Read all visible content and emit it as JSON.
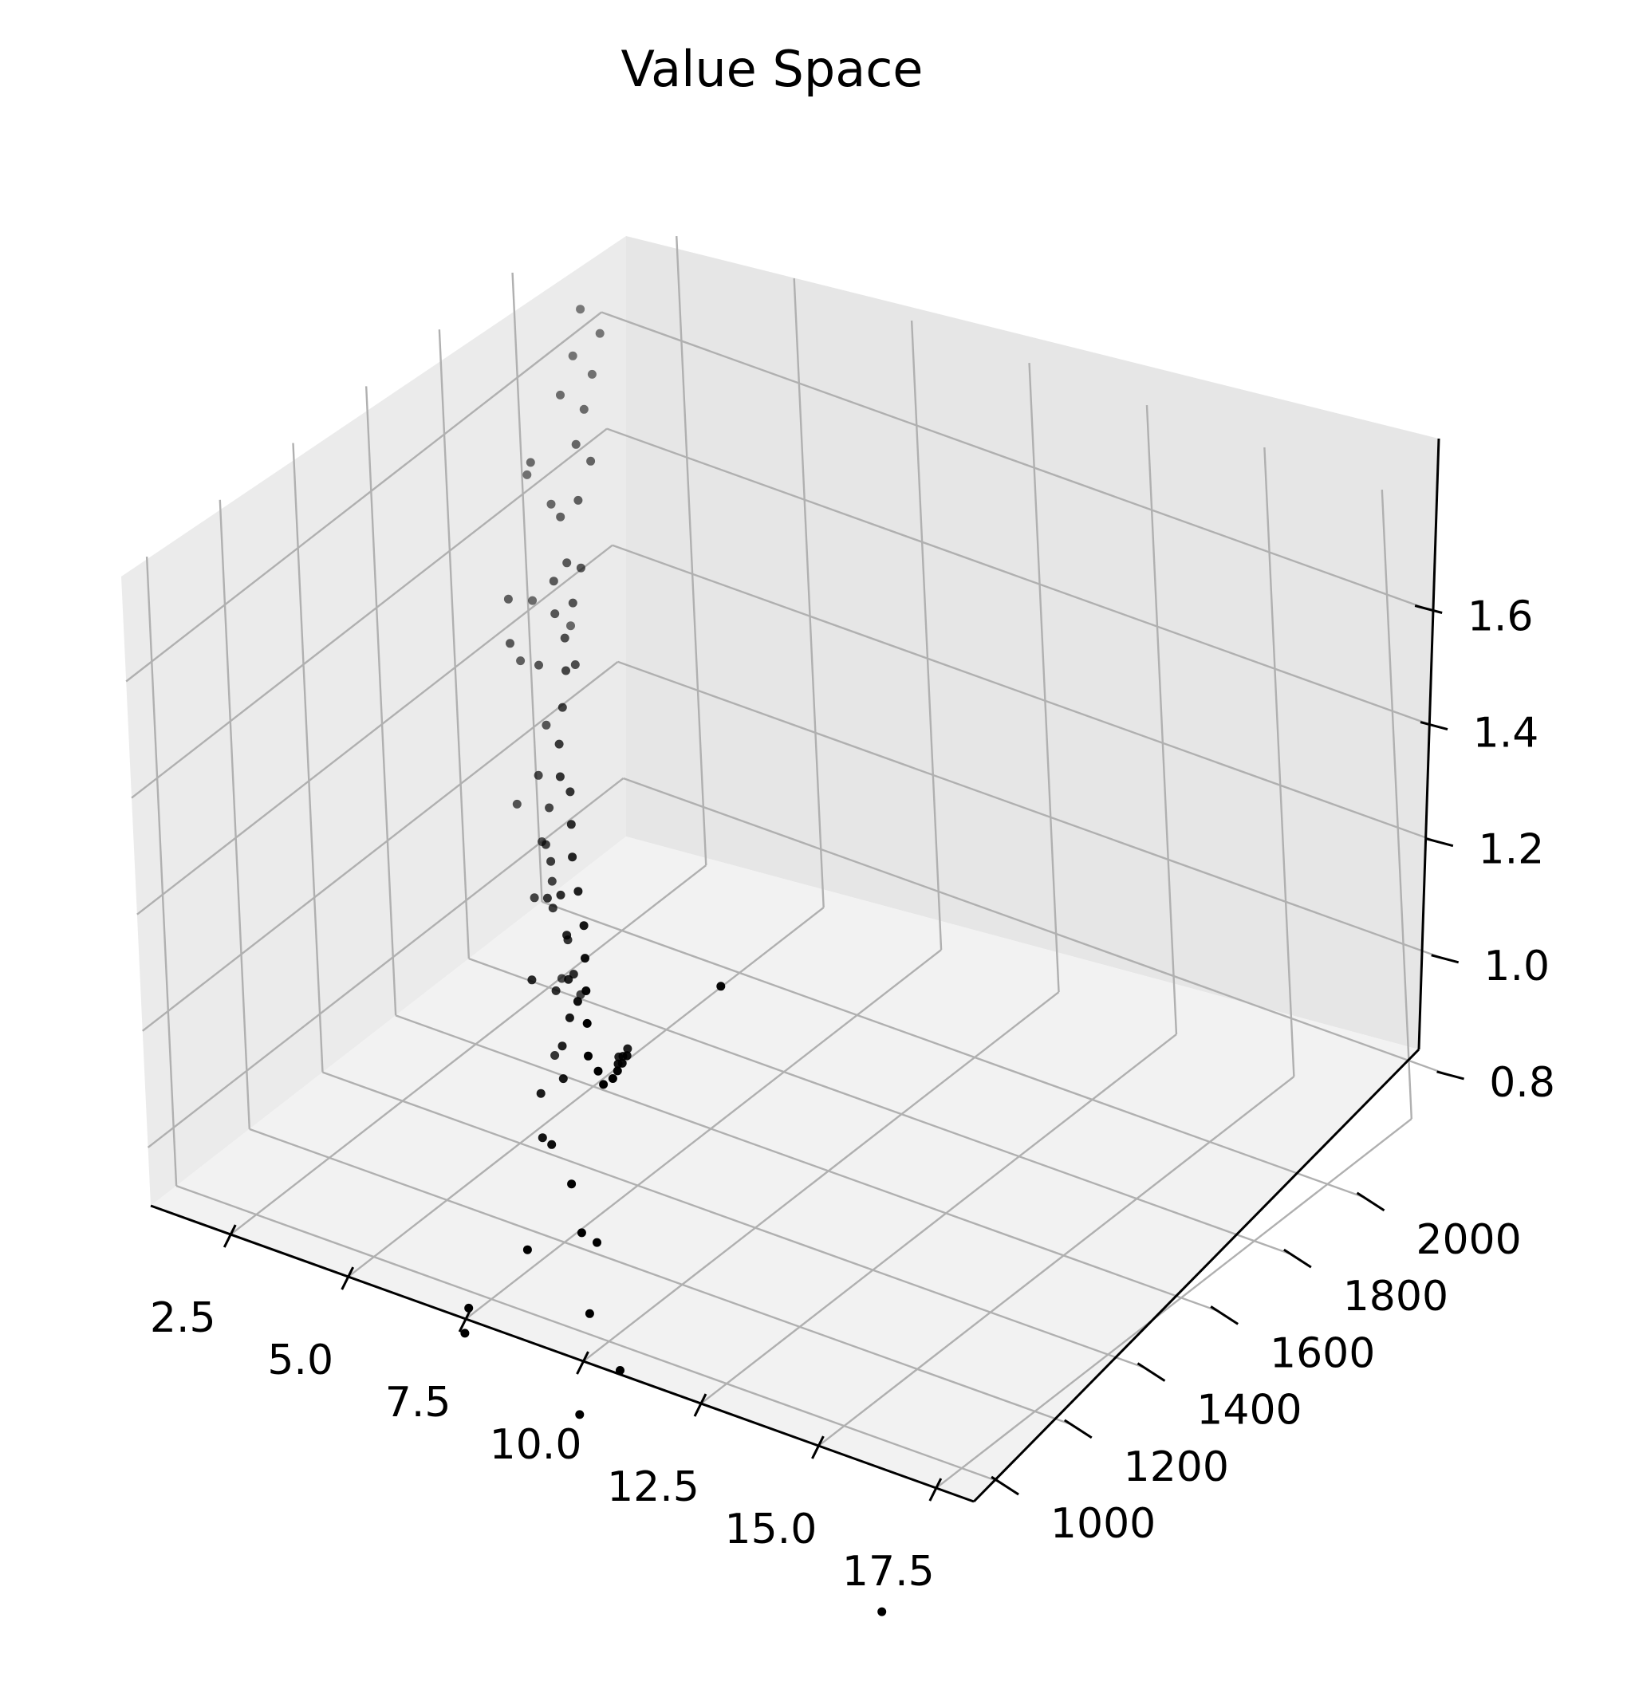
{
  "chart_data": {
    "type": "scatter",
    "projection": "3d",
    "title": "Value Space",
    "xlabel": "",
    "ylabel": "",
    "zlabel": "",
    "grid": true,
    "legend": "none",
    "colors": {
      "points": "#000000",
      "pane_left": "#ebebeb",
      "pane_right": "#e6e6e6",
      "pane_floor": "#f2f2f2",
      "grid": "#b0b0b0",
      "axis": "#000000"
    },
    "x_axis": {
      "range": [
        0.8,
        18.3
      ],
      "ticks": [
        2.5,
        5.0,
        7.5,
        10.0,
        12.5,
        15.0,
        17.5
      ],
      "tick_labels": [
        "2.5",
        "5.0",
        "7.5",
        "10.0",
        "12.5",
        "15.0",
        "17.5"
      ]
    },
    "y_axis": {
      "range": [
        930,
        2230
      ],
      "ticks": [
        1000,
        1200,
        1400,
        1600,
        1800,
        2000
      ],
      "tick_labels": [
        "1000",
        "1200",
        "1400",
        "1600",
        "1800",
        "2000"
      ]
    },
    "z_axis": {
      "range": [
        0.7,
        1.78
      ],
      "ticks": [
        0.8,
        1.0,
        1.2,
        1.4,
        1.6
      ],
      "tick_labels": [
        "0.8",
        "1.0",
        "1.2",
        "1.4",
        "1.6"
      ]
    },
    "points": [
      [
        1.0,
        2150,
        1.65
      ],
      [
        1.4,
        2150,
        1.62
      ],
      [
        1.2,
        2100,
        1.6
      ],
      [
        1.6,
        2100,
        1.58
      ],
      [
        1.3,
        2050,
        1.56
      ],
      [
        1.8,
        2050,
        1.55
      ],
      [
        2.0,
        2000,
        1.52
      ],
      [
        2.3,
        2000,
        1.5
      ],
      [
        2.4,
        1950,
        1.46
      ],
      [
        1.4,
        2000,
        1.4
      ],
      [
        2.0,
        1950,
        1.42
      ],
      [
        2.5,
        1900,
        1.38
      ],
      [
        2.8,
        1900,
        1.38
      ],
      [
        3.0,
        1850,
        1.35
      ],
      [
        2.2,
        1900,
        1.34
      ],
      [
        2.6,
        1850,
        1.32
      ],
      [
        3.2,
        1800,
        1.32
      ],
      [
        3.6,
        1750,
        1.3
      ],
      [
        3.4,
        1800,
        1.28
      ],
      [
        1.6,
        1850,
        1.24
      ],
      [
        2.2,
        1850,
        1.22
      ],
      [
        3.9,
        1700,
        1.27
      ],
      [
        4.2,
        1650,
        1.24
      ],
      [
        4.6,
        1600,
        1.22
      ],
      [
        4.8,
        1600,
        1.2
      ],
      [
        5.2,
        1550,
        1.18
      ],
      [
        5.6,
        1500,
        1.16
      ],
      [
        6.1,
        1450,
        1.14
      ],
      [
        6.6,
        1400,
        1.12
      ],
      [
        7.0,
        1350,
        1.1
      ],
      [
        7.4,
        1300,
        1.08
      ],
      [
        7.8,
        1250,
        1.06
      ],
      [
        8.2,
        1200,
        1.04
      ],
      [
        8.4,
        1200,
        1.02
      ],
      [
        8.5,
        1200,
        1.0
      ],
      [
        8.3,
        1250,
        0.98
      ],
      [
        8.0,
        1300,
        0.96
      ],
      [
        7.7,
        1350,
        0.94
      ],
      [
        7.4,
        1400,
        0.92
      ],
      [
        7.2,
        1400,
        0.9
      ],
      [
        6.9,
        1450,
        0.88
      ],
      [
        6.6,
        1500,
        0.86
      ],
      [
        6.4,
        1500,
        0.84
      ],
      [
        2.3,
        1850,
        1.12
      ],
      [
        2.9,
        1750,
        1.1
      ],
      [
        3.1,
        1750,
        1.05
      ],
      [
        3.4,
        1700,
        1.02
      ],
      [
        4.2,
        1600,
        1.0
      ],
      [
        4.9,
        1550,
        1.05
      ],
      [
        5.4,
        1500,
        1.02
      ],
      [
        5.8,
        1450,
        0.98
      ],
      [
        6.2,
        1400,
        0.95
      ],
      [
        3.5,
        1700,
        0.96
      ],
      [
        3.9,
        1650,
        0.95
      ],
      [
        4.6,
        1600,
        0.94
      ],
      [
        5.1,
        1550,
        0.92
      ],
      [
        2.5,
        1800,
        0.95
      ],
      [
        3.1,
        1700,
        0.92
      ],
      [
        4.7,
        1550,
        0.88
      ],
      [
        5.6,
        1450,
        0.86
      ],
      [
        6.0,
        1400,
        0.84
      ],
      [
        1.4,
        1900,
        1.18
      ],
      [
        1.2,
        1900,
        1.28
      ],
      [
        0.9,
        2000,
        1.22
      ],
      [
        1.0,
        2000,
        1.46
      ],
      [
        0.5,
        2050,
        1.4
      ],
      [
        2.0,
        1800,
        1.0
      ],
      [
        5.5,
        1400,
        0.8
      ],
      [
        6.5,
        1300,
        0.79
      ],
      [
        5.9,
        1350,
        0.76
      ],
      [
        7.3,
        1250,
        0.77
      ],
      [
        8.7,
        1100,
        0.8
      ],
      [
        4.0,
        1700,
        0.78
      ],
      [
        3.2,
        1750,
        0.76
      ],
      [
        4.2,
        1600,
        0.73
      ],
      [
        8.2,
        1200,
        0.72
      ],
      [
        7.1,
        1150,
        0.7
      ],
      [
        9.2,
        1050,
        0.7
      ],
      [
        7.0,
        1000,
        0.67
      ],
      [
        7.3,
        950,
        0.66
      ],
      [
        9.8,
        1050,
        0.62
      ],
      [
        9.7,
        950,
        0.59
      ],
      [
        9.5,
        1400,
        1.1
      ],
      [
        16.2,
        930,
        0.45
      ],
      [
        4.6,
        1500,
        0.92
      ],
      [
        1.7,
        2000,
        1.2
      ],
      [
        3.9,
        1650,
        1.03
      ],
      [
        6.8,
        1350,
        1.02
      ]
    ]
  }
}
